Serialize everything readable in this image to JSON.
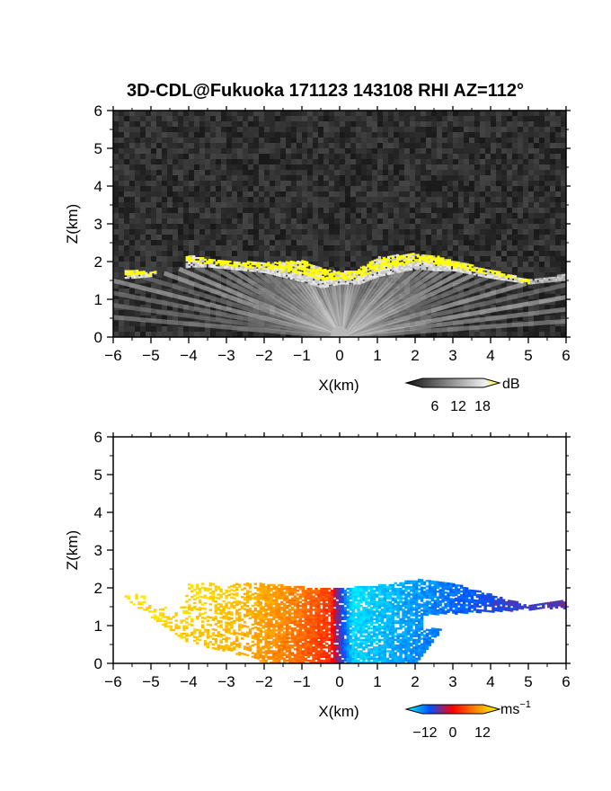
{
  "title": "3D-CDL@Fukuoka 171123 143108 RHI AZ=112°",
  "chart_data": [
    {
      "type": "heatmap",
      "panel": "reflectivity",
      "xlabel": "X(km)",
      "ylabel": "Z(km)",
      "xlim": [
        -6,
        6
      ],
      "ylim": [
        0,
        6
      ],
      "xticks": [
        "−6",
        "−5",
        "−4",
        "−3",
        "−2",
        "−1",
        "0",
        "1",
        "2",
        "3",
        "4",
        "5",
        "6"
      ],
      "yticks": [
        "0",
        "1",
        "2",
        "3",
        "4",
        "5",
        "6"
      ],
      "colorbar": {
        "unit": "dB",
        "ticks": [
          "6",
          "12",
          "18"
        ],
        "range": [
          0,
          20
        ]
      },
      "colors": {
        "background": "#2e2e2e",
        "high": "#ffff00"
      },
      "cloud_layer": [
        {
          "x": -5.5,
          "z_bottom": 1.55,
          "z_top": 1.75
        },
        {
          "x": -5.0,
          "z_bottom": 1.6,
          "z_top": 1.7
        },
        {
          "x": -4.0,
          "z_bottom": 1.85,
          "z_top": 2.15
        },
        {
          "x": -3.5,
          "z_bottom": 1.85,
          "z_top": 2.05
        },
        {
          "x": -3.0,
          "z_bottom": 1.8,
          "z_top": 2.0
        },
        {
          "x": -2.0,
          "z_bottom": 1.7,
          "z_top": 1.95
        },
        {
          "x": -1.0,
          "z_bottom": 1.45,
          "z_top": 2.0
        },
        {
          "x": -0.5,
          "z_bottom": 1.3,
          "z_top": 1.8
        },
        {
          "x": 0.0,
          "z_bottom": 1.4,
          "z_top": 1.7
        },
        {
          "x": 0.5,
          "z_bottom": 1.4,
          "z_top": 1.8
        },
        {
          "x": 1.0,
          "z_bottom": 1.6,
          "z_top": 2.1
        },
        {
          "x": 2.0,
          "z_bottom": 1.8,
          "z_top": 2.2
        },
        {
          "x": 2.5,
          "z_bottom": 1.75,
          "z_top": 2.15
        },
        {
          "x": 3.0,
          "z_bottom": 1.75,
          "z_top": 2.0
        },
        {
          "x": 4.0,
          "z_bottom": 1.55,
          "z_top": 1.75
        },
        {
          "x": 5.0,
          "z_bottom": 1.4,
          "z_top": 1.5
        },
        {
          "x": 6.0,
          "z_bottom": 1.5,
          "z_top": 1.65
        }
      ]
    },
    {
      "type": "heatmap",
      "panel": "doppler_velocity",
      "xlabel": "X(km)",
      "ylabel": "Z(km)",
      "xlim": [
        -6,
        6
      ],
      "ylim": [
        0,
        6
      ],
      "xticks": [
        "−6",
        "−5",
        "−4",
        "−3",
        "−2",
        "−1",
        "0",
        "1",
        "2",
        "3",
        "4",
        "5",
        "6"
      ],
      "yticks": [
        "0",
        "1",
        "2",
        "3",
        "4",
        "5",
        "6"
      ],
      "colorbar": {
        "unit": "ms",
        "unit_sup": "−1",
        "ticks": [
          "−12",
          "0",
          "12"
        ],
        "range": [
          -15,
          15
        ]
      },
      "velocity_profile": [
        {
          "x": -5.5,
          "v": 12,
          "z_bottom": 1.55,
          "z_top": 1.8
        },
        {
          "x": -4.0,
          "v": 11,
          "z_bottom": 0.5,
          "z_top": 2.1
        },
        {
          "x": -3.0,
          "v": 10,
          "z_bottom": 0.3,
          "z_top": 2.1
        },
        {
          "x": -2.0,
          "v": 8,
          "z_bottom": 0.0,
          "z_top": 2.1
        },
        {
          "x": -1.0,
          "v": 5,
          "z_bottom": 0.0,
          "z_top": 2.0
        },
        {
          "x": -0.3,
          "v": 2,
          "z_bottom": 0.0,
          "z_top": 2.0
        },
        {
          "x": 0.3,
          "v": -13,
          "z_bottom": 0.0,
          "z_top": 2.0
        },
        {
          "x": 1.0,
          "v": -12,
          "z_bottom": 0.0,
          "z_top": 2.05
        },
        {
          "x": 2.0,
          "v": -10,
          "z_bottom": 0.0,
          "z_top": 2.2
        },
        {
          "x": 3.0,
          "v": -8,
          "z_bottom": 1.3,
          "z_top": 2.1
        },
        {
          "x": 4.0,
          "v": -6,
          "z_bottom": 1.2,
          "z_top": 1.8
        },
        {
          "x": 5.0,
          "v": -5,
          "z_bottom": 1.05,
          "z_top": 1.5
        },
        {
          "x": 6.0,
          "v": -4,
          "z_bottom": 1.2,
          "z_top": 1.7
        }
      ]
    }
  ]
}
